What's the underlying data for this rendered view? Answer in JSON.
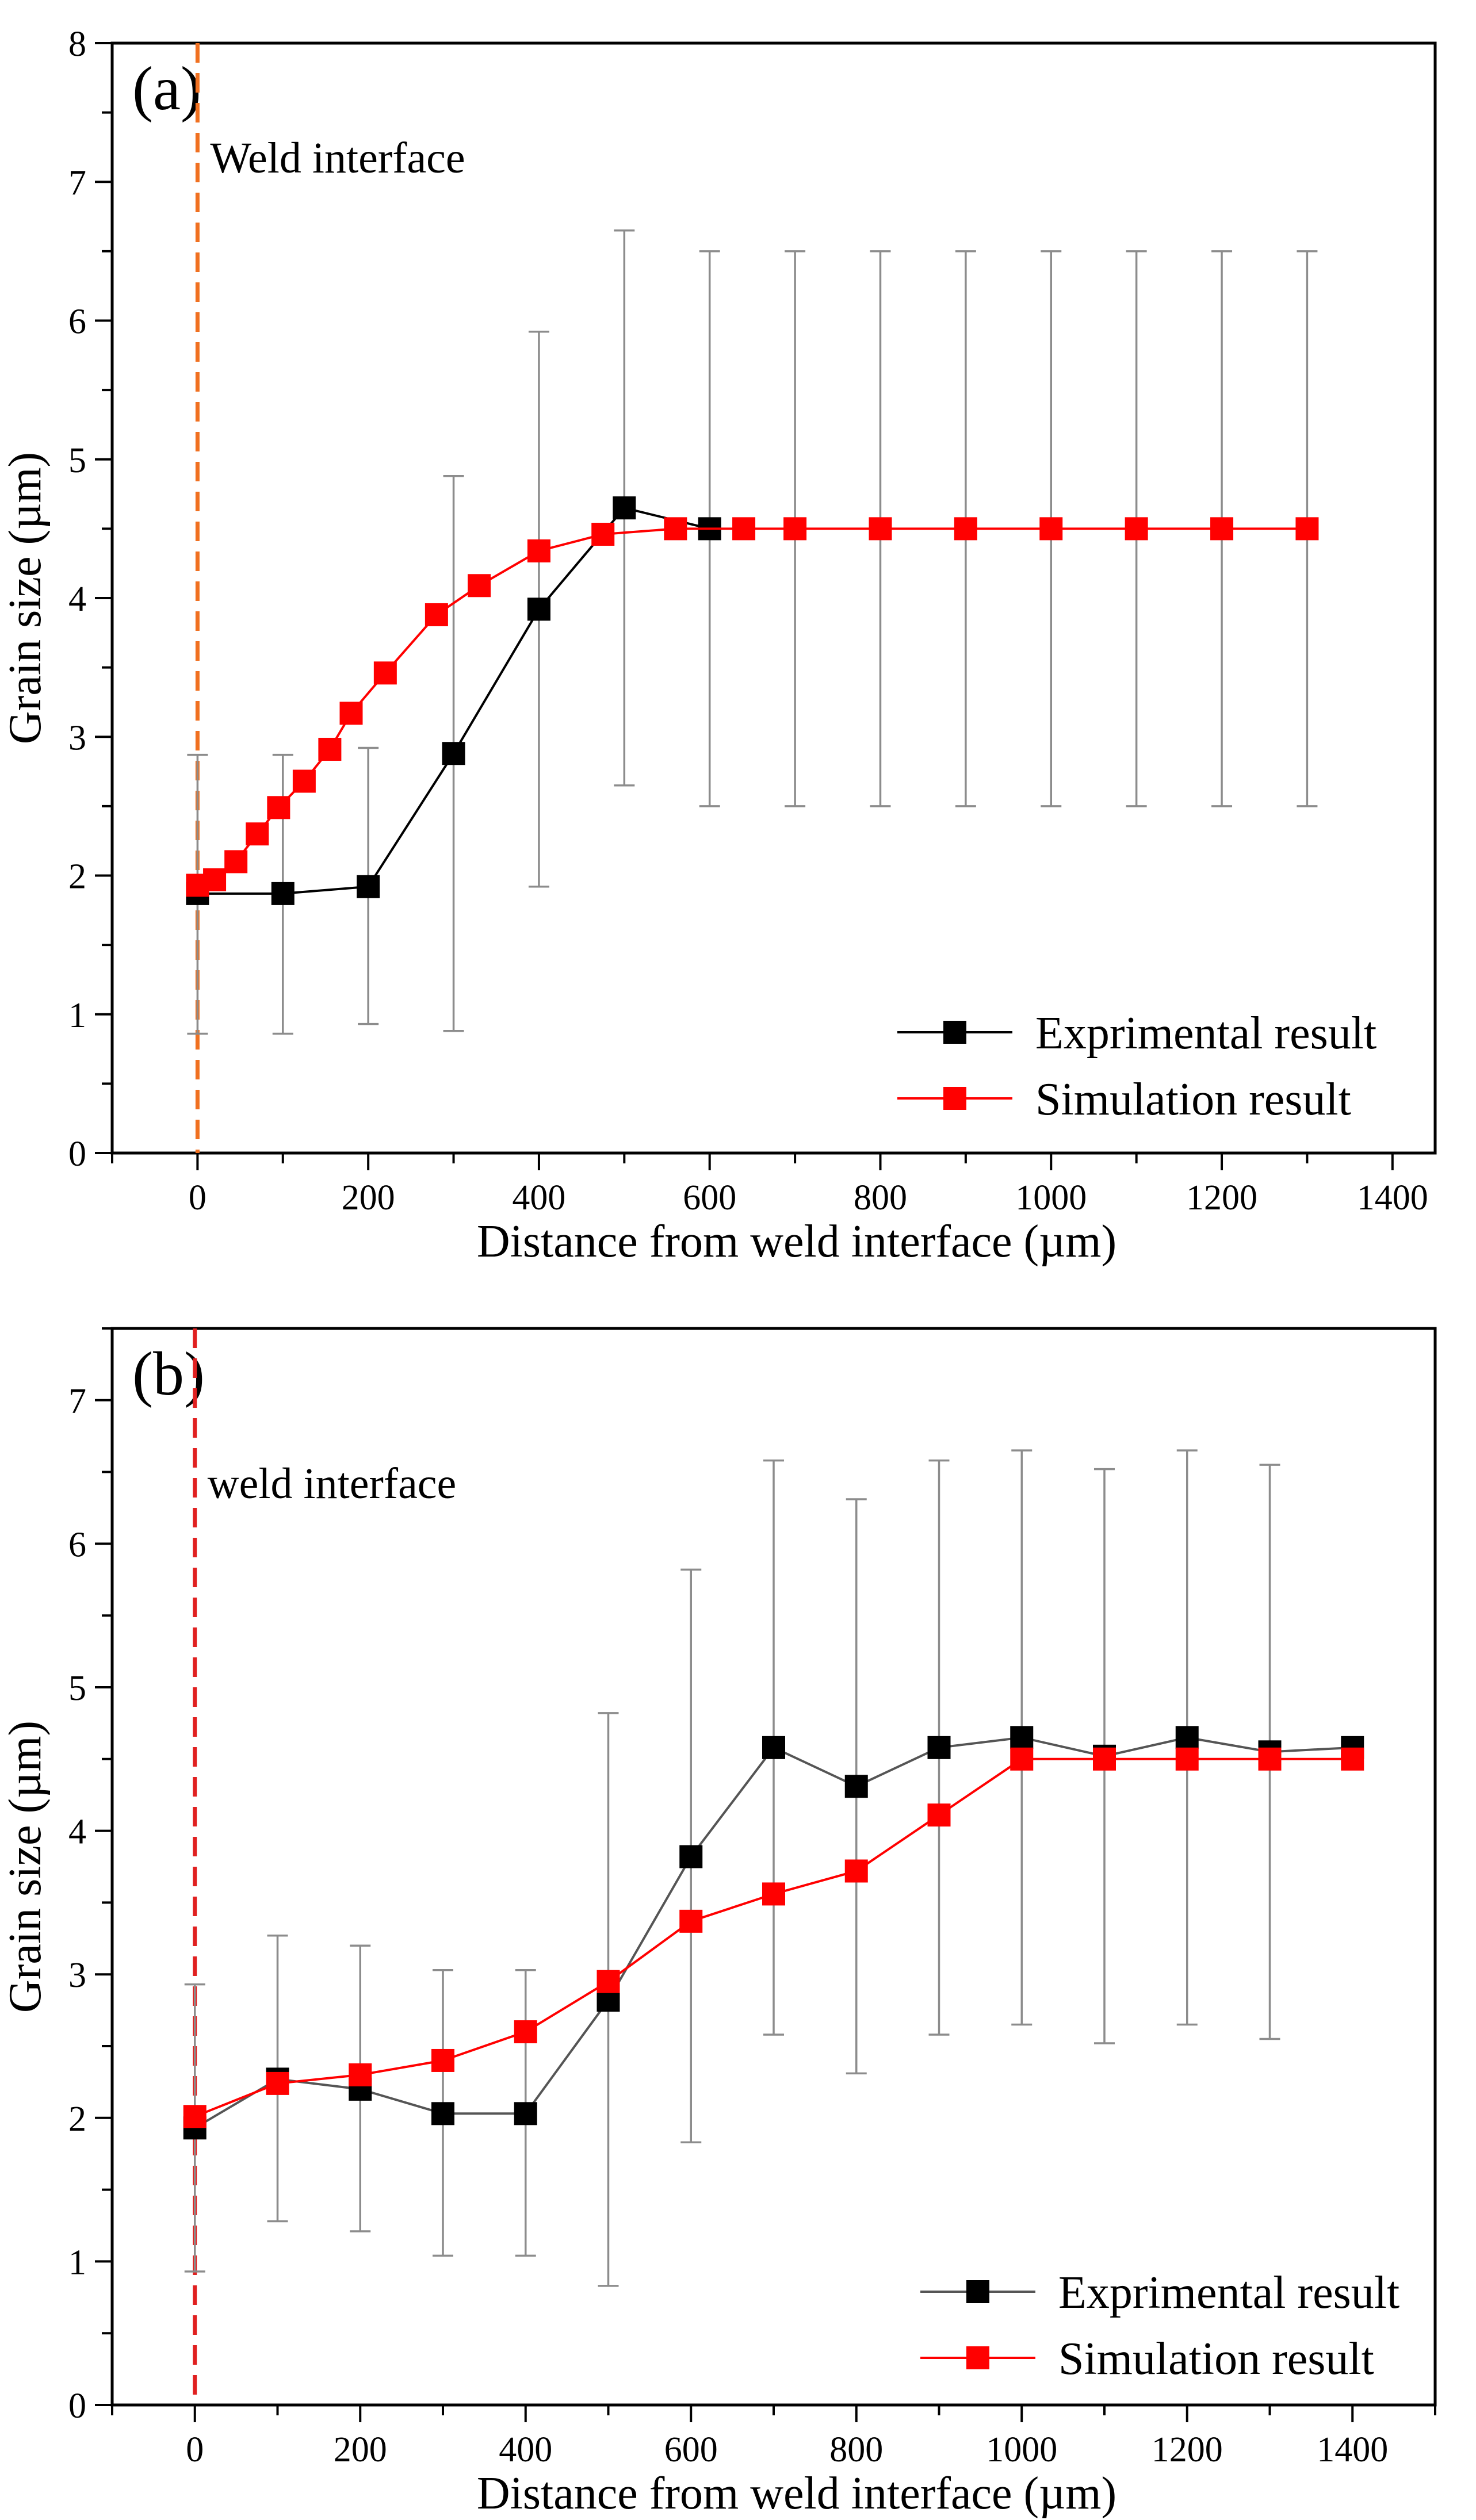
{
  "colors": {
    "experimental": "#000000",
    "simulation": "#ff0000",
    "errorbar": "#8c8c8c",
    "interface_a": "#f07020",
    "interface_b": "#e02020"
  },
  "chart_data": [
    {
      "panel": "(a)",
      "type": "line",
      "xlabel": "Distance from weld interface (µm)",
      "ylabel": "Grain size (µm)",
      "xlim": [
        -100,
        1450
      ],
      "ylim": [
        0,
        8
      ],
      "xticks": [
        0,
        200,
        400,
        600,
        800,
        1000,
        1200,
        1400
      ],
      "yticks": [
        0,
        1,
        2,
        3,
        4,
        5,
        6,
        7,
        8
      ],
      "annotation": {
        "text": "Weld interface",
        "x": 0
      },
      "series": [
        {
          "name": "Exprimental result",
          "color": "#000000",
          "x": [
            0,
            100,
            200,
            300,
            400,
            500,
            600
          ],
          "y": [
            1.87,
            1.87,
            1.92,
            2.88,
            3.92,
            4.65,
            4.5
          ],
          "err_low": [
            0.86,
            0.86,
            0.93,
            0.88,
            1.92,
            2.65,
            2.5
          ],
          "err_high": [
            2.87,
            2.87,
            2.92,
            4.88,
            5.92,
            6.65,
            6.5
          ]
        },
        {
          "name": "Simulation result",
          "color": "#ff0000",
          "x": [
            0,
            20,
            45,
            70,
            95,
            125,
            155,
            180,
            220,
            280,
            330,
            400,
            475,
            560,
            640,
            700,
            800,
            900,
            1000,
            1100,
            1200,
            1300
          ],
          "y": [
            1.93,
            1.97,
            2.1,
            2.3,
            2.49,
            2.68,
            2.91,
            3.17,
            3.46,
            3.88,
            4.09,
            4.34,
            4.46,
            4.5,
            4.5,
            4.5,
            4.5,
            4.5,
            4.5,
            4.5,
            4.5,
            4.5
          ]
        }
      ],
      "errorbars_only": {
        "x": [
          700,
          800,
          900,
          1000,
          1100,
          1200,
          1300
        ],
        "err_low": [
          2.5,
          2.5,
          2.5,
          2.5,
          2.5,
          2.5,
          2.5
        ],
        "err_high": [
          6.5,
          6.5,
          6.5,
          6.5,
          6.5,
          6.5,
          6.5
        ]
      },
      "legend": [
        "Exprimental result",
        "Simulation result"
      ]
    },
    {
      "panel": "(b)",
      "type": "line",
      "xlabel": "Distance from weld interface (µm)",
      "ylabel": "Grain size (µm)",
      "xlim": [
        -100,
        1500
      ],
      "ylim": [
        0,
        7.5
      ],
      "xticks": [
        0,
        200,
        400,
        600,
        800,
        1000,
        1200,
        1400
      ],
      "yticks": [
        0,
        1,
        2,
        3,
        4,
        5,
        6,
        7
      ],
      "annotation": {
        "text": "weld interface",
        "x": 0
      },
      "series": [
        {
          "name": "Exprimental result",
          "color": "#000000",
          "x": [
            0,
            100,
            200,
            300,
            400,
            500,
            600,
            700,
            800,
            900,
            1000,
            1100,
            1200,
            1300,
            1400
          ],
          "y": [
            1.93,
            2.27,
            2.2,
            2.03,
            2.03,
            2.82,
            3.82,
            4.58,
            4.31,
            4.58,
            4.65,
            4.52,
            4.65,
            4.55,
            4.58
          ],
          "err_low": [
            0.93,
            1.28,
            1.21,
            1.04,
            1.04,
            0.83,
            1.83,
            2.58,
            2.31,
            2.58,
            2.65,
            2.52,
            2.65,
            2.55,
            null
          ],
          "err_high": [
            2.93,
            3.27,
            3.2,
            3.03,
            3.03,
            4.82,
            5.82,
            6.58,
            6.31,
            6.58,
            6.65,
            6.52,
            6.65,
            6.55,
            null
          ]
        },
        {
          "name": "Simulation result",
          "color": "#ff0000",
          "x": [
            0,
            100,
            200,
            300,
            400,
            500,
            600,
            700,
            800,
            900,
            1000,
            1100,
            1200,
            1300,
            1400
          ],
          "y": [
            2.01,
            2.24,
            2.3,
            2.4,
            2.6,
            2.95,
            3.37,
            3.56,
            3.72,
            4.11,
            4.5,
            4.5,
            4.5,
            4.5,
            4.5
          ]
        }
      ],
      "legend": [
        "Exprimental result",
        "Simulation result"
      ]
    }
  ]
}
